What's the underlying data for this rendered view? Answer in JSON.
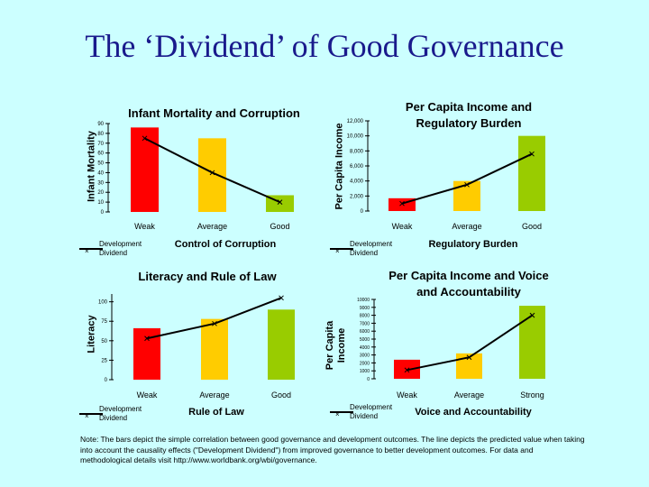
{
  "slide_title": "The ‘Dividend’ of Good Governance",
  "colors": {
    "weak": "#ff0000",
    "average": "#ffcc00",
    "good": "#99cc00",
    "background": "#ccffff",
    "title": "#1a1a8c"
  },
  "legend_label": "Development Dividend",
  "legend_icon": "x-marker-line",
  "note": "Note: The bars depict the simple correlation between good governance and development outcomes.  The line depicts the predicted value when taking into account the causality effects (\"Development Dividend\") from improved governance to better development outcomes. For data and methodological details visit http://www.worldbank.org/wbi/governance.",
  "chart_data": [
    {
      "type": "bar",
      "title": "Infant Mortality and Corruption",
      "xlabel": "Control of Corruption",
      "ylabel": "Infant Mortality",
      "categories": [
        "Weak",
        "Average",
        "Good"
      ],
      "ylim": [
        0,
        90
      ],
      "yticks": [
        "0",
        "10",
        "20",
        "30",
        "40",
        "50",
        "60",
        "70",
        "80",
        "90"
      ],
      "values": [
        86,
        75,
        17
      ],
      "line": {
        "name": "Development Dividend",
        "values": [
          75,
          40,
          10
        ]
      }
    },
    {
      "type": "bar",
      "title": "Per Capita Income and Regulatory Burden",
      "xlabel": "Regulatory Burden",
      "ylabel": "Per Capita Income",
      "categories": [
        "Weak",
        "Average",
        "Good"
      ],
      "ylim": [
        0,
        12000
      ],
      "yticks": [
        "0",
        "2,000",
        "4,000",
        "6,000",
        "8,000",
        "10,000",
        "12,000"
      ],
      "values": [
        1700,
        4000,
        10000
      ],
      "line": {
        "name": "Development Dividend",
        "values": [
          1000,
          3500,
          7600
        ]
      }
    },
    {
      "type": "bar",
      "title": "Literacy and Rule of Law",
      "xlabel": "Rule of Law",
      "ylabel": "Literacy",
      "categories": [
        "Weak",
        "Average",
        "Good"
      ],
      "ylim": [
        0,
        110
      ],
      "yticks": [
        "0",
        "25",
        "50",
        "75",
        "100"
      ],
      "values": [
        66,
        78,
        90
      ],
      "line": {
        "name": "Development Dividend",
        "values": [
          53,
          72,
          105
        ]
      }
    },
    {
      "type": "bar",
      "title": "Per Capita Income and Voice and Accountability",
      "xlabel": "Voice and Accountability",
      "ylabel": "Per Capita Income",
      "categories": [
        "Weak",
        "Average",
        "Strong"
      ],
      "ylim": [
        0,
        10000
      ],
      "yticks": [
        "0",
        "1000",
        "2000",
        "3000",
        "4000",
        "5000",
        "6000",
        "7000",
        "8000",
        "9000",
        "10000"
      ],
      "values": [
        2400,
        3200,
        9200
      ],
      "line": {
        "name": "Development Dividend",
        "values": [
          1100,
          2700,
          8000
        ]
      }
    }
  ]
}
